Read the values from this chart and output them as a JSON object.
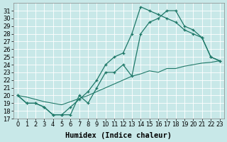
{
  "background_color": "#c8e8e8",
  "line_color": "#1e7868",
  "grid_color": "#b0d0d0",
  "xlabel": "Humidex (Indice chaleur)",
  "xlabel_fontsize": 7.5,
  "tick_fontsize": 6,
  "ylim": [
    17,
    32
  ],
  "xlim": [
    -0.5,
    23.5
  ],
  "yticks": [
    17,
    18,
    19,
    20,
    21,
    22,
    23,
    24,
    25,
    26,
    27,
    28,
    29,
    30,
    31
  ],
  "xticks": [
    0,
    1,
    2,
    3,
    4,
    5,
    6,
    7,
    8,
    9,
    10,
    11,
    12,
    13,
    14,
    15,
    16,
    17,
    18,
    19,
    20,
    21,
    22,
    23
  ],
  "line1_x": [
    0,
    1,
    2,
    3,
    4,
    5,
    6,
    7,
    8,
    9,
    10,
    11,
    12,
    13,
    14,
    15,
    16,
    17,
    18,
    19,
    20,
    21,
    22,
    23
  ],
  "line1_y": [
    20,
    19,
    19,
    18.5,
    17.5,
    17.5,
    17.5,
    20,
    19,
    21,
    23,
    23,
    24,
    22.5,
    28,
    29.5,
    30,
    31,
    31,
    29,
    28.5,
    27.5,
    25,
    24.5
  ],
  "line2_x": [
    0,
    1,
    2,
    3,
    4,
    5,
    6,
    7,
    8,
    9,
    10,
    11,
    12,
    13,
    14,
    15,
    16,
    17,
    18,
    19,
    20,
    21,
    22,
    23
  ],
  "line2_y": [
    20,
    19,
    19,
    18.5,
    17.5,
    17.5,
    18.5,
    19.5,
    20.5,
    22,
    24,
    25,
    25.5,
    28,
    31.5,
    31,
    30.5,
    30,
    29.5,
    28.5,
    28,
    27.5,
    25,
    24.5
  ],
  "line3_x": [
    0,
    1,
    2,
    3,
    4,
    5,
    6,
    7,
    8,
    9,
    10,
    11,
    12,
    13,
    14,
    15,
    16,
    17,
    18,
    19,
    20,
    21,
    22,
    23
  ],
  "line3_y": [
    20,
    19.8,
    19.5,
    19.2,
    19.0,
    18.8,
    19.2,
    19.6,
    20.0,
    20.5,
    21.0,
    21.5,
    22.0,
    22.5,
    22.8,
    23.2,
    23.0,
    23.5,
    23.5,
    23.8,
    24.0,
    24.2,
    24.3,
    24.5
  ]
}
